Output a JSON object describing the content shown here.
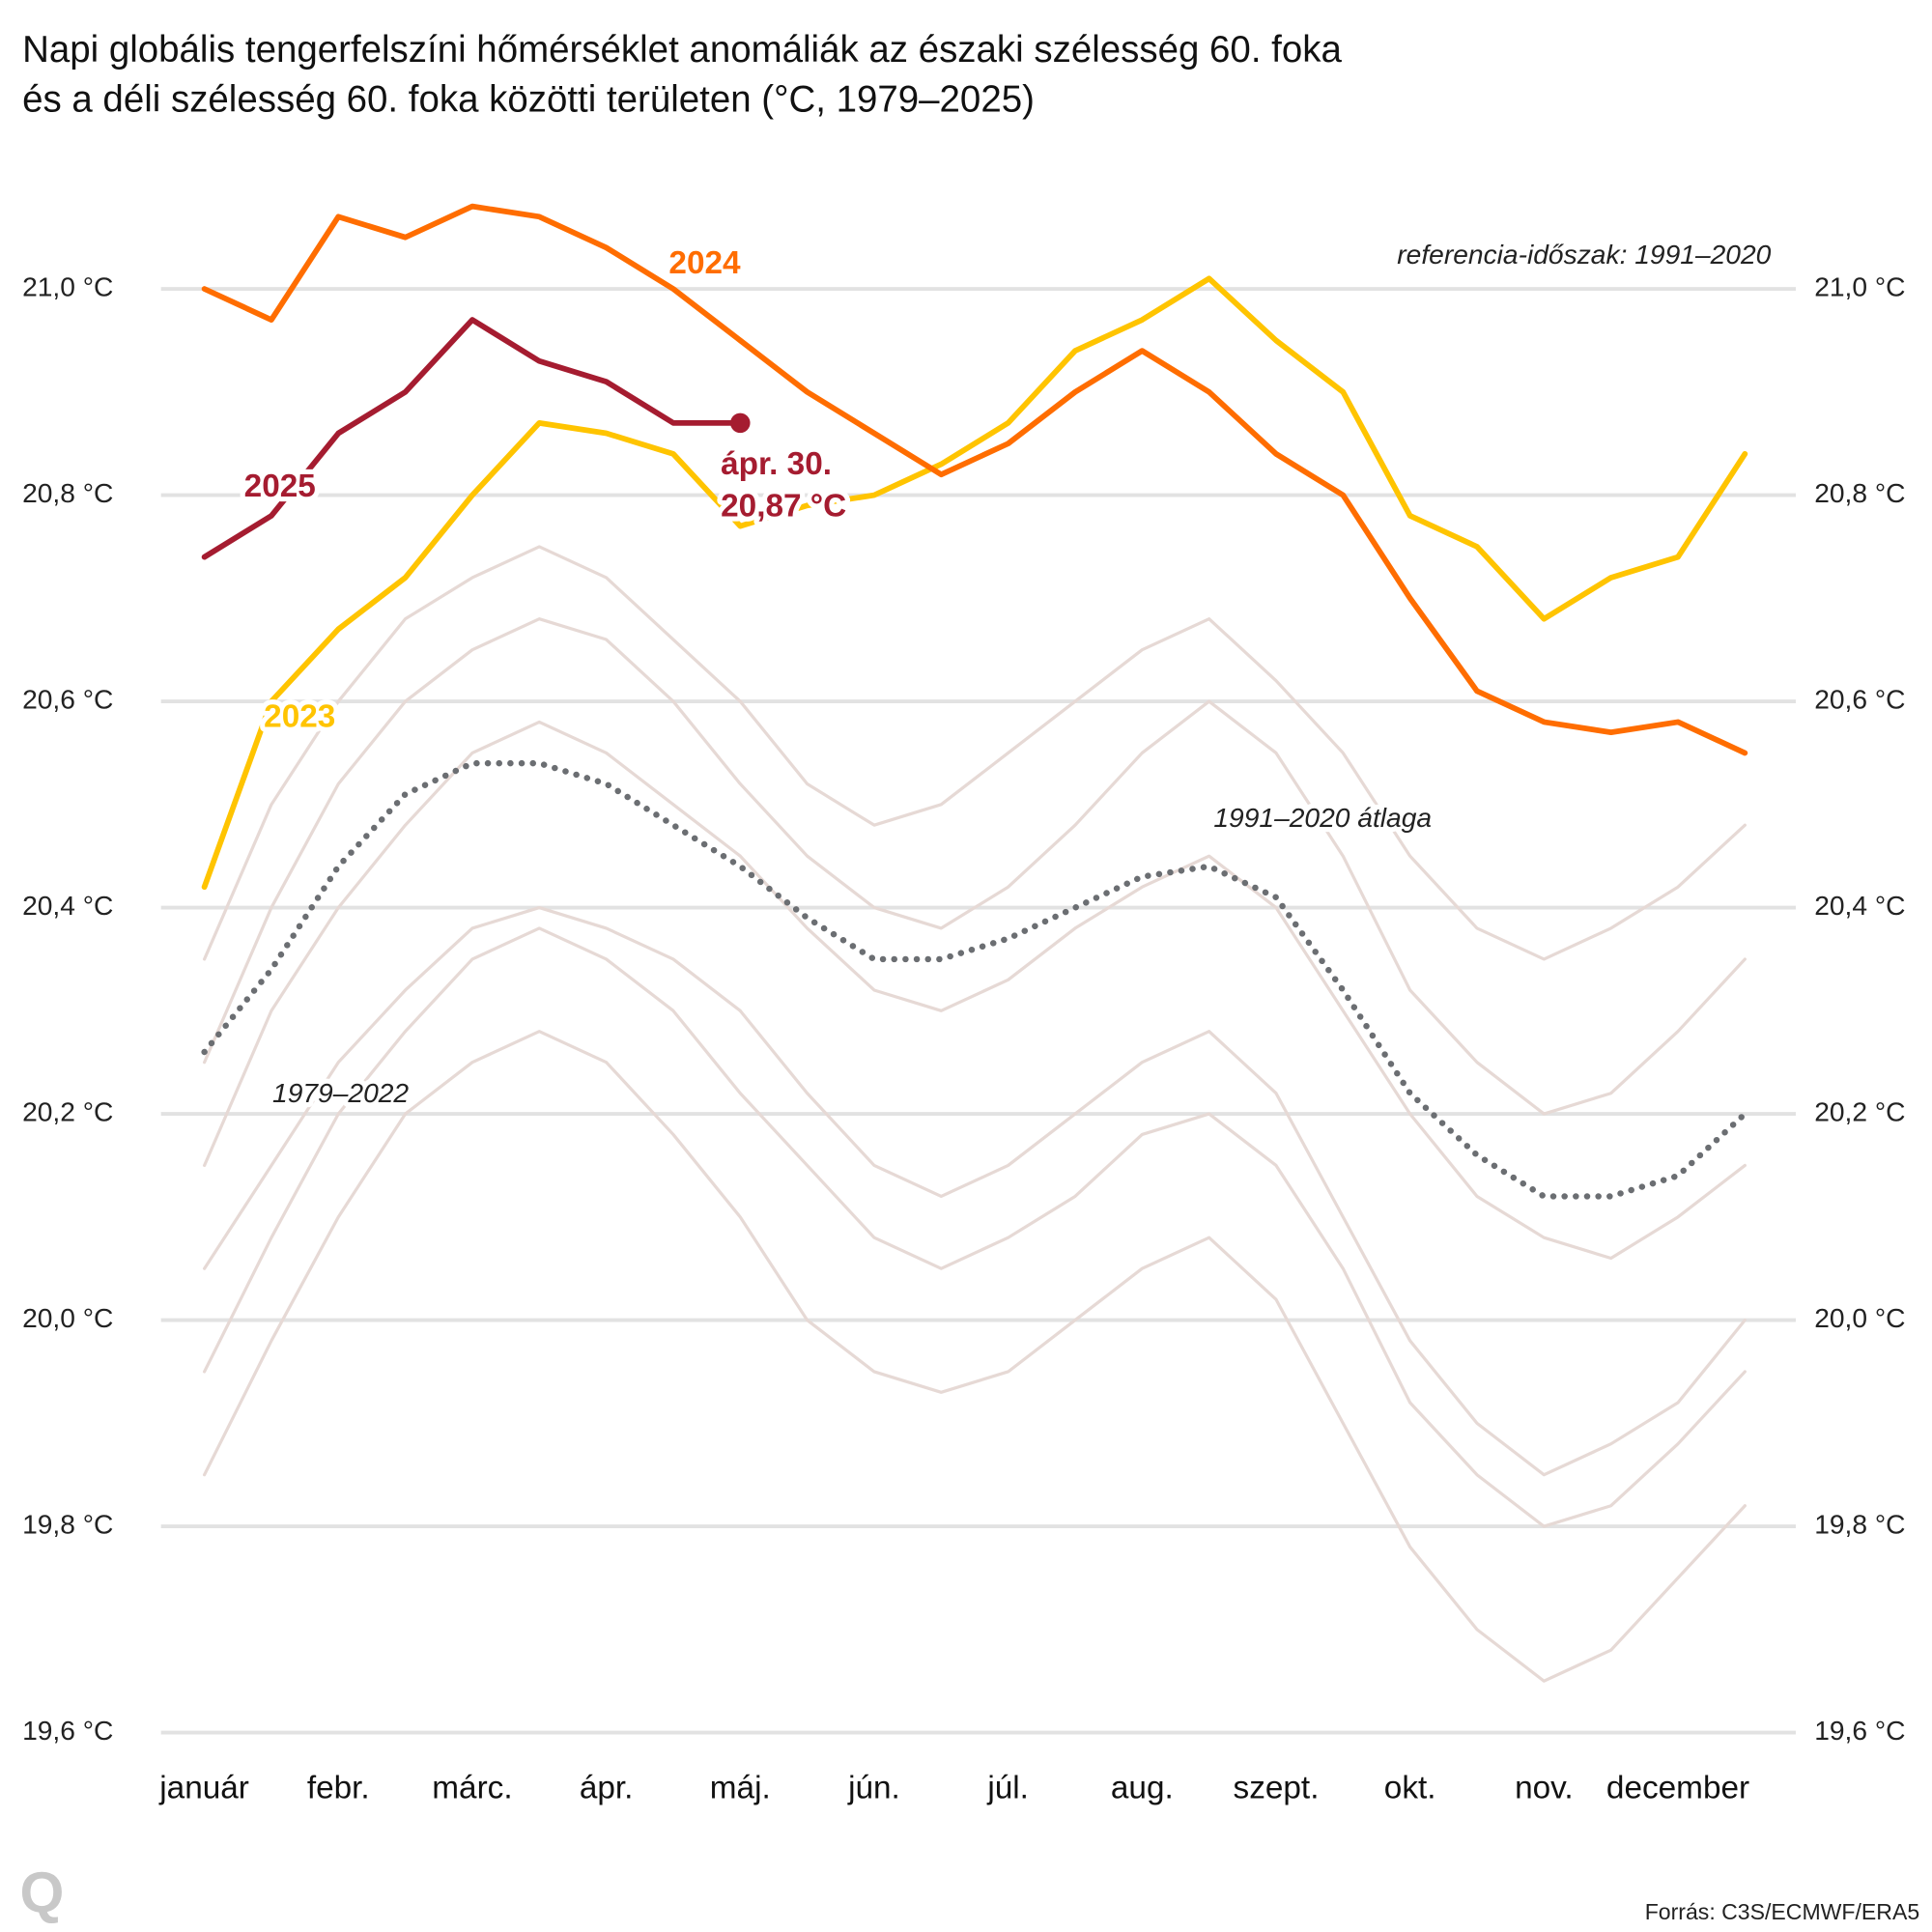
{
  "chart_data": {
    "type": "line",
    "title": "Napi globális tengerfelszíni hőmérséklet anomáliák az északi szélesség 60. foka",
    "title_line2": "és a déli szélesség 60. foka közötti területen (°C, 1979–2025)",
    "annotations": {
      "reference": "referencia-időszak: 1991–2020",
      "background_years": "1979–2022",
      "last_date": "ápr. 30.",
      "last_value": "20,87 °C",
      "source": "Forrás: C3S/ECMWF/ERA5",
      "logo": "Q"
    },
    "categories": [
      "január",
      null,
      "febr.",
      null,
      "márc.",
      null,
      "ápr.",
      null,
      "máj.",
      null,
      "jún.",
      null,
      "júl.",
      null,
      "aug.",
      null,
      "szept.",
      null,
      "okt.",
      null,
      "nov.",
      null,
      "december",
      null
    ],
    "ylim": [
      19.6,
      21.1
    ],
    "yticks": [
      {
        "value": 19.6,
        "label": "19,6 °C"
      },
      {
        "value": 19.8,
        "label": "19,8 °C"
      },
      {
        "value": 20.0,
        "label": "20,0 °C"
      },
      {
        "value": 20.2,
        "label": "20,2 °C"
      },
      {
        "value": 20.4,
        "label": "20,4 °C"
      },
      {
        "value": 20.6,
        "label": "20,6 °C"
      },
      {
        "value": 20.8,
        "label": "20,8 °C"
      },
      {
        "value": 21.0,
        "label": "21,0 °C"
      }
    ],
    "y2lim": [
      19.6,
      21.1
    ],
    "y2ticks": [
      {
        "value": 19.6,
        "label": "19,6 °C"
      },
      {
        "value": 19.8,
        "label": "19,8 °C"
      },
      {
        "value": 20.0,
        "label": "20,0 °C"
      },
      {
        "value": 20.2,
        "label": "20,2 °C"
      },
      {
        "value": 20.4,
        "label": "20,4 °C"
      },
      {
        "value": 20.6,
        "label": "20,6 °C"
      },
      {
        "value": 20.8,
        "label": "20,8 °C"
      },
      {
        "value": 21.0,
        "label": "21,0 °C"
      }
    ],
    "grid": true,
    "series": [
      {
        "color": "#e6d9d5",
        "values": [
          20.05,
          20.15,
          20.25,
          20.32,
          20.38,
          20.4,
          20.38,
          20.35,
          20.3,
          20.22,
          20.15,
          20.12,
          20.15,
          20.2,
          20.25,
          20.28,
          20.22,
          20.1,
          19.98,
          19.9,
          19.85,
          19.88,
          19.92,
          20.0
        ]
      },
      {
        "color": "#e6d9d5",
        "values": [
          20.15,
          20.3,
          20.4,
          20.48,
          20.55,
          20.58,
          20.55,
          20.5,
          20.45,
          20.38,
          20.32,
          20.3,
          20.33,
          20.38,
          20.42,
          20.45,
          20.4,
          20.3,
          20.2,
          20.12,
          20.08,
          20.06,
          20.1,
          20.15
        ]
      },
      {
        "color": "#e6d9d5",
        "values": [
          20.35,
          20.5,
          20.6,
          20.68,
          20.72,
          20.75,
          20.72,
          20.66,
          20.6,
          20.52,
          20.48,
          20.5,
          20.55,
          20.6,
          20.65,
          20.68,
          20.62,
          20.55,
          20.45,
          20.38,
          20.35,
          20.38,
          20.42,
          20.48
        ]
      },
      {
        "color": "#e6d9d5",
        "values": [
          19.85,
          19.98,
          20.1,
          20.2,
          20.25,
          20.28,
          20.25,
          20.18,
          20.1,
          20.0,
          19.95,
          19.93,
          19.95,
          20.0,
          20.05,
          20.08,
          20.02,
          19.9,
          19.78,
          19.7,
          19.65,
          19.68,
          19.75,
          19.82
        ]
      },
      {
        "color": "#e6d9d5",
        "values": [
          20.25,
          20.4,
          20.52,
          20.6,
          20.65,
          20.68,
          20.66,
          20.6,
          20.52,
          20.45,
          20.4,
          20.38,
          20.42,
          20.48,
          20.55,
          20.6,
          20.55,
          20.45,
          20.32,
          20.25,
          20.2,
          20.22,
          20.28,
          20.35
        ]
      },
      {
        "color": "#e6d9d5",
        "values": [
          19.95,
          20.08,
          20.2,
          20.28,
          20.35,
          20.38,
          20.35,
          20.3,
          20.22,
          20.15,
          20.08,
          20.05,
          20.08,
          20.12,
          20.18,
          20.2,
          20.15,
          20.05,
          19.92,
          19.85,
          19.8,
          19.82,
          19.88,
          19.95
        ]
      },
      {
        "name": "1991–2020 átlaga",
        "color": "#6b6e72",
        "dotted": true,
        "values": [
          20.26,
          20.34,
          20.44,
          20.51,
          20.54,
          20.54,
          20.52,
          20.48,
          20.44,
          20.39,
          20.35,
          20.35,
          20.37,
          20.4,
          20.43,
          20.44,
          20.41,
          20.32,
          20.22,
          20.16,
          20.12,
          20.12,
          20.14,
          20.2
        ]
      },
      {
        "name": "2023",
        "color": "#ffc400",
        "values": [
          20.42,
          20.6,
          20.67,
          20.72,
          20.8,
          20.87,
          20.86,
          20.84,
          20.77,
          20.79,
          20.8,
          20.83,
          20.87,
          20.94,
          20.97,
          21.01,
          20.95,
          20.9,
          20.78,
          20.75,
          20.68,
          20.72,
          20.74,
          20.84
        ]
      },
      {
        "name": "2024",
        "color": "#ff6d00",
        "values": [
          21.0,
          20.97,
          21.07,
          21.05,
          21.08,
          21.07,
          21.04,
          21.0,
          20.95,
          20.9,
          20.86,
          20.82,
          20.85,
          20.9,
          20.94,
          20.9,
          20.84,
          20.8,
          20.7,
          20.61,
          20.58,
          20.57,
          20.58,
          20.55
        ]
      },
      {
        "name": "2025",
        "color": "#a51c30",
        "values": [
          20.74,
          20.78,
          20.86,
          20.9,
          20.97,
          20.93,
          20.91,
          20.87,
          20.87,
          null,
          null,
          null,
          null,
          null,
          null,
          null,
          null,
          null,
          null,
          null,
          null,
          null,
          null,
          null
        ]
      }
    ]
  }
}
